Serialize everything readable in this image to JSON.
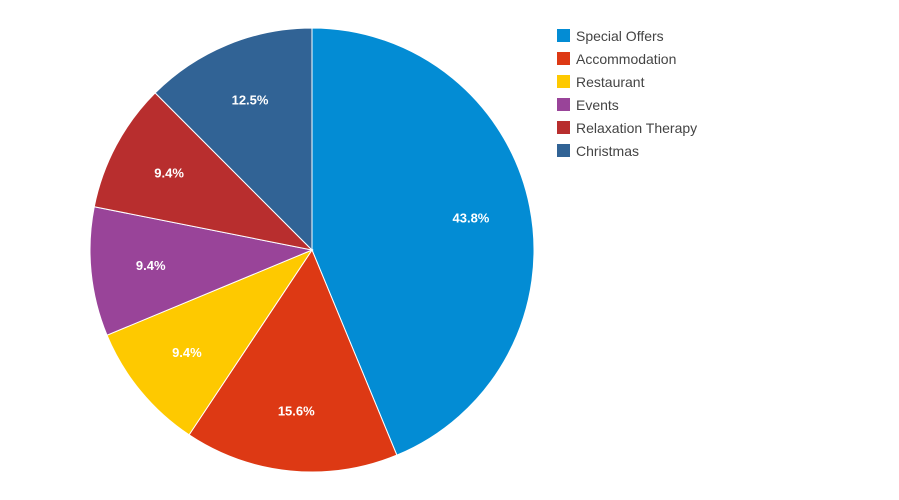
{
  "chart_data": {
    "type": "pie",
    "labels": [
      "Special Offers",
      "Accommodation",
      "Restaurant",
      "Events",
      "Relaxation Therapy",
      "Christmas"
    ],
    "values": [
      43.8,
      15.6,
      9.4,
      9.4,
      9.4,
      12.5
    ],
    "value_labels": [
      "43.8%",
      "15.6%",
      "9.4%",
      "9.4%",
      "9.4%",
      "12.5%"
    ],
    "colors": [
      "#038cd4",
      "#dd3914",
      "#fec900",
      "#994499",
      "#b82e2e",
      "#316395"
    ],
    "start_angle": "top (12 o'clock)",
    "direction": "clockwise",
    "legend_position": "right"
  }
}
